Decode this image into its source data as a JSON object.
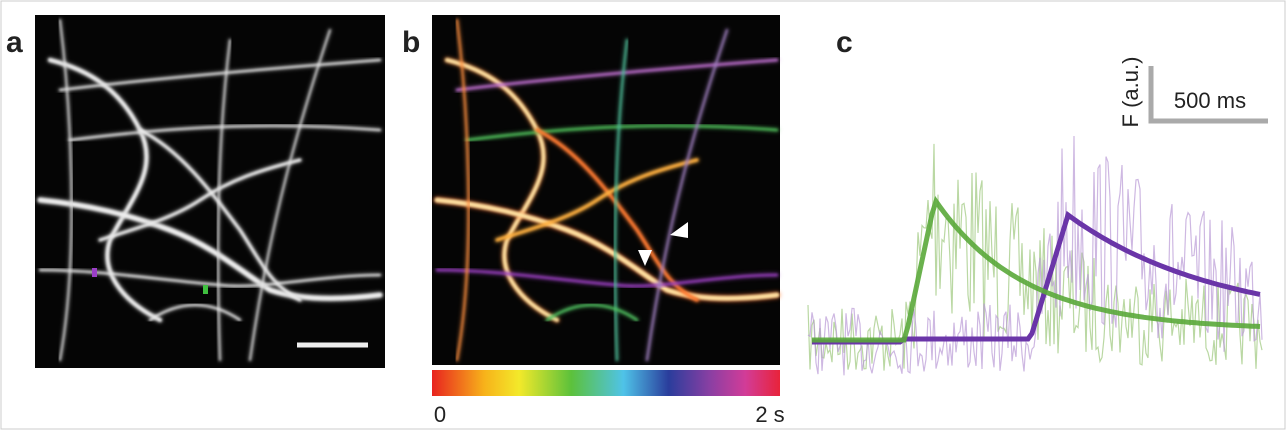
{
  "panels": [
    {
      "label": "a"
    },
    {
      "label": "b",
      "colorbar": {
        "start": "0",
        "end": "2 s"
      }
    },
    {
      "label": "c",
      "scale_bar": {
        "y_label": "F (a.u.)",
        "x_label": "500 ms"
      }
    }
  ]
}
